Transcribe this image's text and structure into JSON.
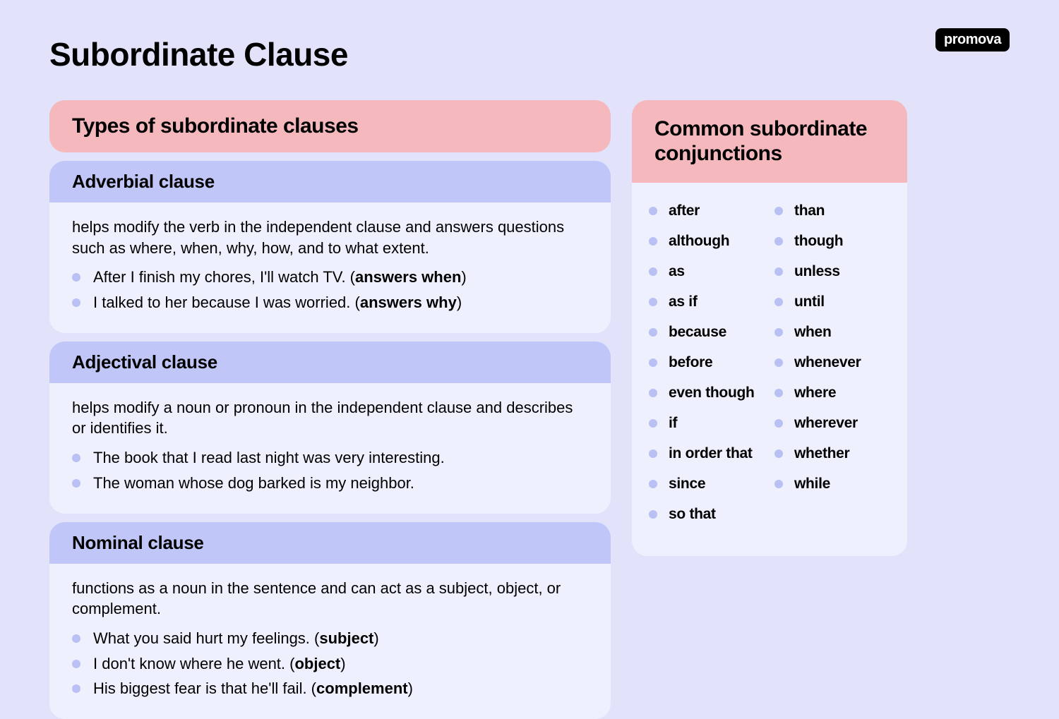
{
  "brand": "promova",
  "pageTitle": "Subordinate Clause",
  "typesHeader": "Types of subordinate clauses",
  "sections": [
    {
      "title": "Adverbial clause",
      "desc": "helps modify the verb in the independent clause and answers questions such as where, when, why, how, and to what extent.",
      "examples": [
        {
          "text": "After I finish my chores, I'll watch TV. (",
          "bold": "answers when",
          "tail": ")"
        },
        {
          "text": "I talked to her because I was worried. (",
          "bold": "answers why",
          "tail": ")"
        }
      ]
    },
    {
      "title": "Adjectival clause",
      "desc": "helps modify a noun or pronoun in the independent clause and describes or identifies it.",
      "examples": [
        {
          "text": "The book that I read last night was very interesting.",
          "bold": "",
          "tail": ""
        },
        {
          "text": "The woman whose dog barked is my neighbor.",
          "bold": "",
          "tail": ""
        }
      ]
    },
    {
      "title": "Nominal clause",
      "desc": "functions as a noun in the sentence and can act as a subject, object, or complement.",
      "examples": [
        {
          "text": "What you said hurt my feelings. (",
          "bold": "subject",
          "tail": ")"
        },
        {
          "text": "I don't know where he went. (",
          "bold": "object",
          "tail": ")"
        },
        {
          "text": "His biggest fear is that he'll fail. (",
          "bold": "complement",
          "tail": ")"
        }
      ]
    }
  ],
  "conjHeader": "Common subordinate conjunctions",
  "conjCol1": [
    "after",
    "although",
    "as",
    "as if",
    "because",
    "before",
    "even though",
    "if",
    "in order that",
    "since",
    "so that"
  ],
  "conjCol2": [
    "than",
    "though",
    "unless",
    "until",
    "when",
    "whenever",
    "where",
    "wherever",
    "whether",
    "while"
  ],
  "colors": {
    "background": "#e2e3fb",
    "pink": "#f5b8bd",
    "lavender": "#c1c6f9",
    "lightBox": "#eff0fd",
    "bullet": "#b9c0f4",
    "brandBg": "#000000",
    "brandText": "#ffffff"
  }
}
